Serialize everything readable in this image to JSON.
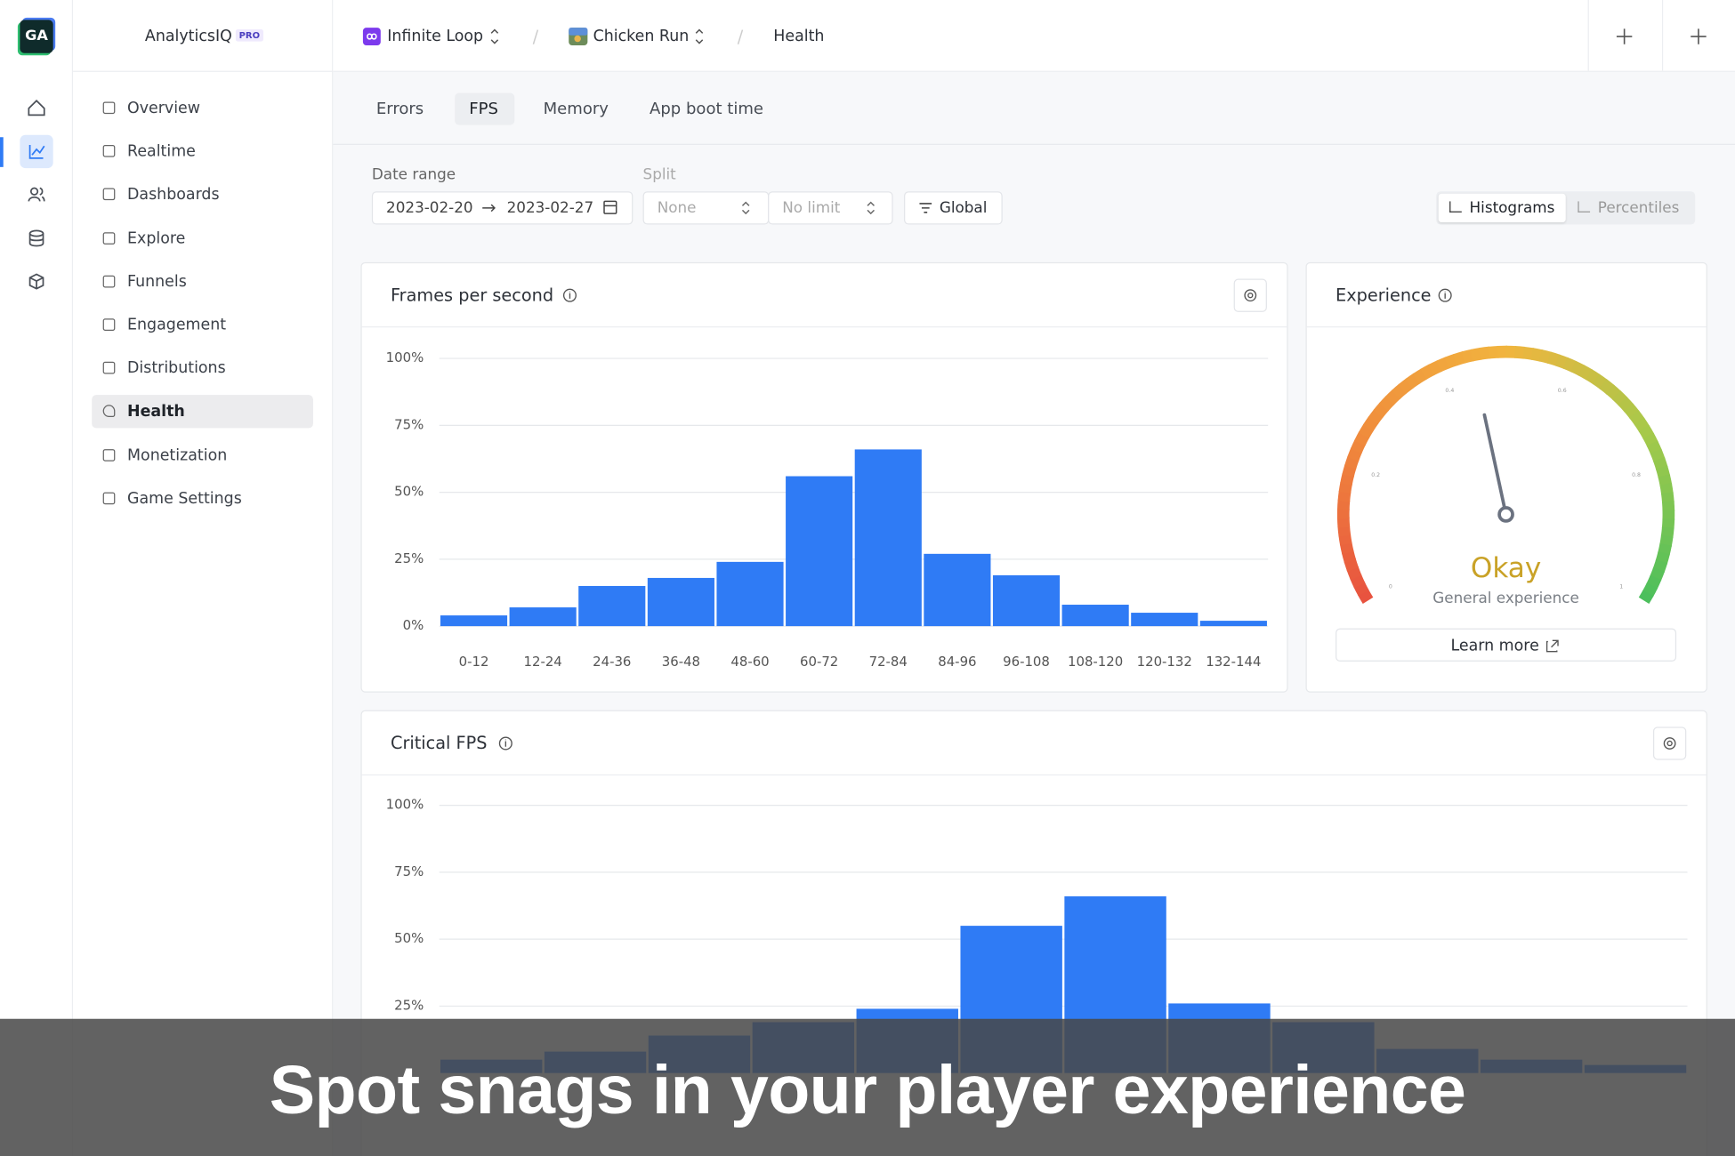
{
  "brand": {
    "logo": "GA",
    "name": "AnalyticsIQ",
    "badge": "PRO"
  },
  "breadcrumb": [
    "Infinite Loop",
    "Chicken Run",
    "Health"
  ],
  "nav": {
    "items": [
      "Overview",
      "Realtime",
      "Dashboards",
      "Explore",
      "Funnels",
      "Engagement",
      "Distributions",
      "Health",
      "Monetization",
      "Game Settings"
    ],
    "active": 7
  },
  "tabs": {
    "items": [
      "Errors",
      "FPS",
      "Memory",
      "App boot time"
    ],
    "active": 1
  },
  "filters": {
    "date_range_label": "Date range",
    "start": "2023-02-20",
    "end": "2023-02-27",
    "split_label": "Split",
    "split": "None",
    "limit": "No limit",
    "scope": "Global"
  },
  "view_toggle": {
    "items": [
      "Histograms",
      "Percentiles"
    ],
    "active": 0
  },
  "chart_data": [
    {
      "type": "bar",
      "title": "Frames per second",
      "categories": [
        "0-12",
        "12-24",
        "24-36",
        "36-48",
        "48-60",
        "60-72",
        "72-84",
        "84-96",
        "96-108",
        "108-120",
        "120-132",
        "132-144"
      ],
      "values": [
        4,
        7,
        15,
        18,
        24,
        56,
        66,
        27,
        19,
        8,
        5,
        2
      ],
      "color": "#2f7bf5",
      "ylim": [
        0,
        100
      ],
      "yticks": [
        {
          "value": 0,
          "label": "0%"
        },
        {
          "value": 25,
          "label": "25%"
        },
        {
          "value": 50,
          "label": "50%"
        },
        {
          "value": 75,
          "label": "75%"
        },
        {
          "value": 100,
          "label": "100%"
        }
      ],
      "grid": true
    },
    {
      "type": "bar",
      "title": "Critical FPS",
      "categories": [
        null,
        null,
        null,
        null,
        null,
        null,
        null,
        null,
        null,
        null,
        null,
        null
      ],
      "values": [
        5,
        8,
        14,
        19,
        24,
        55,
        66,
        26,
        19,
        9,
        5,
        3
      ],
      "color": "#2f7bf5",
      "ylim": [
        0,
        100
      ],
      "yticks": [
        {
          "value": 25,
          "label": "25%"
        },
        {
          "value": 50,
          "label": "50%"
        },
        {
          "value": 75,
          "label": "75%"
        },
        {
          "value": 100,
          "label": "100%"
        }
      ],
      "grid": true
    }
  ],
  "experience": {
    "title": "Experience",
    "gauge": {
      "value": 0.45,
      "min": 0,
      "max": 1,
      "ticks": [
        0,
        0.2,
        0.4,
        0.6,
        0.8,
        1
      ]
    },
    "rating": "Okay",
    "subtitle": "General experience",
    "link": "Learn more"
  },
  "caption": "Spot snags in your player experience"
}
